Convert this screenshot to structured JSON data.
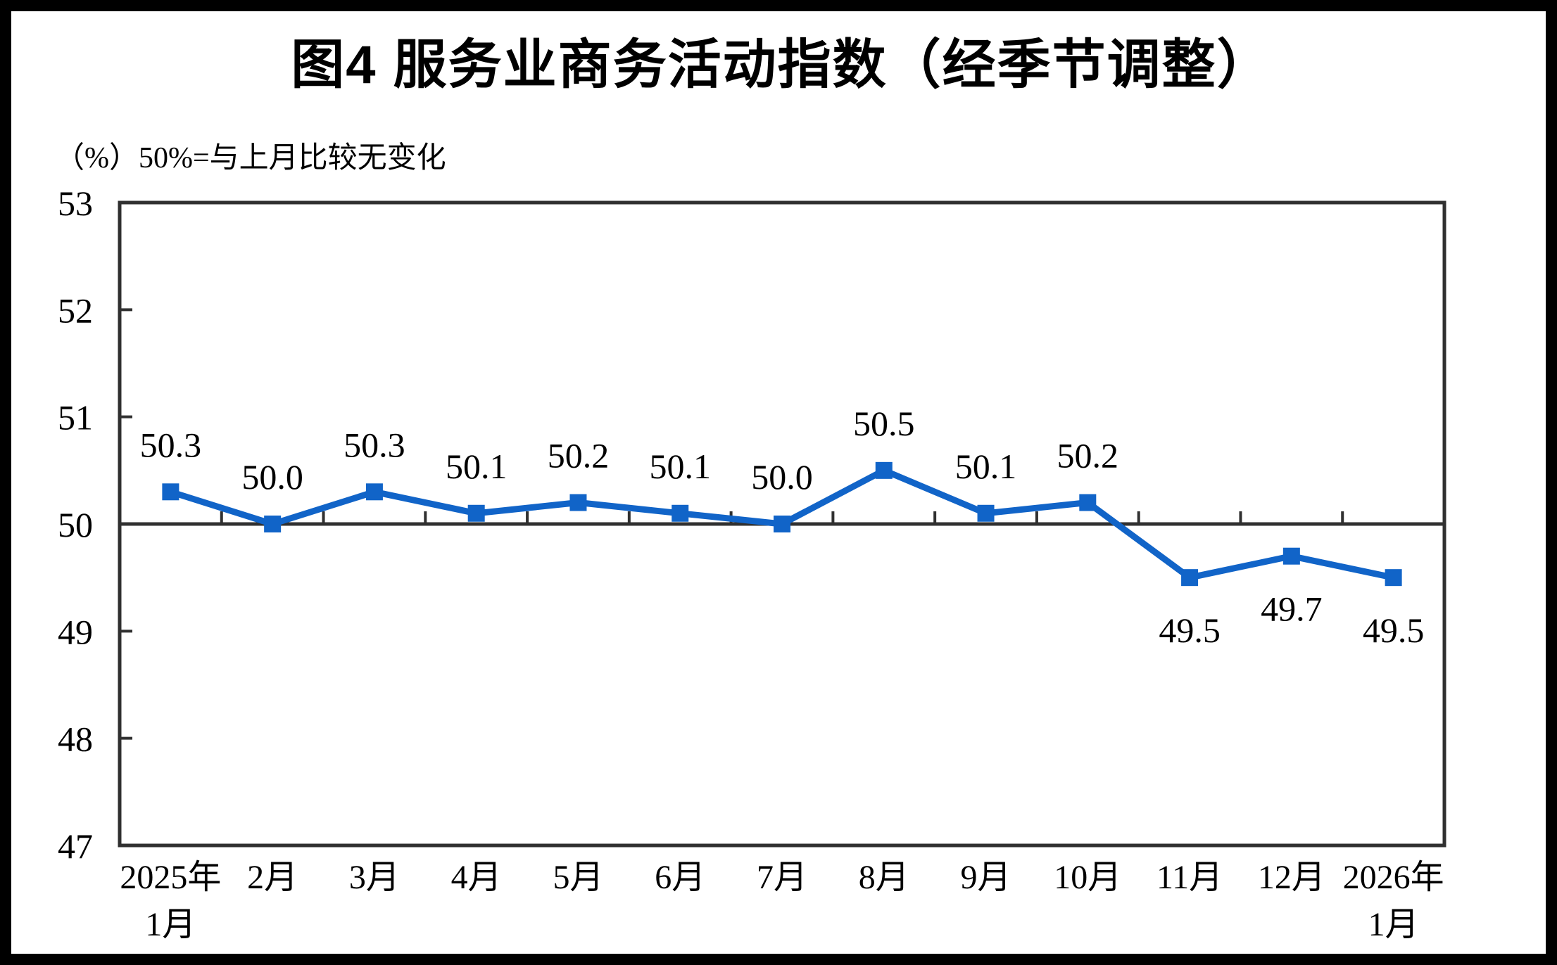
{
  "page": {
    "title": "图4  服务业商务活动指数（经季节调整）",
    "unit_note": "（%）50%=与上月比较无变化"
  },
  "chart_data": {
    "type": "line",
    "title": "图4  服务业商务活动指数（经季节调整）",
    "unit_note": "（%）50%=与上月比较无变化",
    "categories": [
      "2025年\n1月",
      "2月",
      "3月",
      "4月",
      "5月",
      "6月",
      "7月",
      "8月",
      "9月",
      "10月",
      "11月",
      "12月",
      "2026年\n1月"
    ],
    "series": [
      {
        "name": "服务业商务活动指数",
        "values": [
          50.3,
          50.0,
          50.3,
          50.1,
          50.2,
          50.1,
          50.0,
          50.5,
          50.1,
          50.2,
          49.5,
          49.7,
          49.5
        ],
        "labels": [
          "50.3",
          "50.0",
          "50.3",
          "50.1",
          "50.2",
          "50.1",
          "50.0",
          "50.5",
          "50.1",
          "50.2",
          "49.5",
          "49.7",
          "49.5"
        ]
      }
    ],
    "ylim": [
      47,
      53
    ],
    "yticks": [
      47,
      48,
      49,
      50,
      51,
      52,
      53
    ],
    "reference_value": 50,
    "grid": false,
    "legend": false,
    "marker": "square",
    "label_decimals": 1,
    "colors": {
      "line": "#1164C8",
      "axis": "#303030",
      "text": "#000000",
      "background": "#FFFFFF",
      "frame": "#000000"
    }
  }
}
